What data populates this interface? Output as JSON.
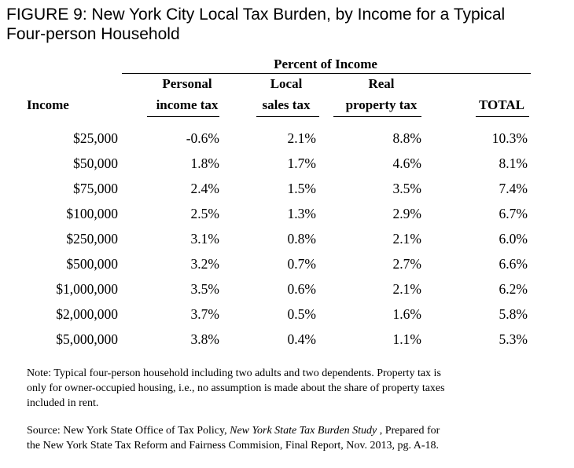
{
  "title": {
    "line1": "FIGURE 9: New York City Local Tax Burden, by Income for a Typical",
    "line2": "Four-person Household"
  },
  "table": {
    "group_header": "Percent of Income",
    "columns": {
      "income": "Income",
      "personal_l1": "Personal",
      "personal_l2": "income tax",
      "sales_l1": "Local",
      "sales_l2": "sales tax",
      "property_l1": "Real",
      "property_l2": "property tax",
      "total": "TOTAL"
    },
    "rows": [
      [
        "$25,000",
        "-0.6%",
        "2.1%",
        "8.8%",
        "10.3%"
      ],
      [
        "$50,000",
        "1.8%",
        "1.7%",
        "4.6%",
        "8.1%"
      ],
      [
        "$75,000",
        "2.4%",
        "1.5%",
        "3.5%",
        "7.4%"
      ],
      [
        "$100,000",
        "2.5%",
        "1.3%",
        "2.9%",
        "6.7%"
      ],
      [
        "$250,000",
        "3.1%",
        "0.8%",
        "2.1%",
        "6.0%"
      ],
      [
        "$500,000",
        "3.2%",
        "0.7%",
        "2.7%",
        "6.6%"
      ],
      [
        "$1,000,000",
        "3.5%",
        "0.6%",
        "2.1%",
        "6.2%"
      ],
      [
        "$2,000,000",
        "3.7%",
        "0.5%",
        "1.6%",
        "5.8%"
      ],
      [
        "$5,000,000",
        "3.8%",
        "0.4%",
        "1.1%",
        "5.3%"
      ]
    ]
  },
  "note": {
    "line1": "Note: Typical four-person household including two adults and two dependents. Property tax is",
    "line2": "only for owner-occupied housing, i.e., no assumption is made about the share of property taxes",
    "line3": "included in rent."
  },
  "source": {
    "prefix": "Source: New York State Office of Tax Policy, ",
    "study": "New York State Tax Burden Study",
    "suffix1": " , Prepared for",
    "line2": "the New York State Tax Reform and Fairness Commision, Final Report, Nov. 2013, pg. A-18."
  }
}
